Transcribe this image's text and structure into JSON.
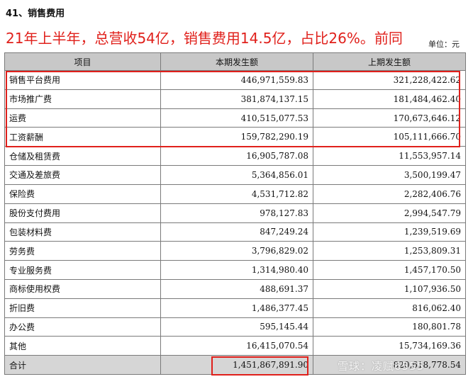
{
  "section_title": "41、销售费用",
  "headline": "21年上半年，总营收54亿，销售费用14.5亿，占比26%。前同",
  "unit_label": "单位：元",
  "columns": [
    "项目",
    "本期发生额",
    "上期发生额"
  ],
  "rows": [
    {
      "item": "销售平台费用",
      "current": "446,971,559.83",
      "previous": "321,228,422.62"
    },
    {
      "item": "市场推广费",
      "current": "381,874,137.15",
      "previous": "181,484,462.40"
    },
    {
      "item": "运费",
      "current": "410,515,077.53",
      "previous": "170,673,646.12"
    },
    {
      "item": "工资薪酬",
      "current": "159,782,290.19",
      "previous": "105,111,666.70"
    },
    {
      "item": "仓储及租赁费",
      "current": "16,905,787.08",
      "previous": "11,553,957.14"
    },
    {
      "item": "交通及差旅费",
      "current": "5,364,856.01",
      "previous": "3,500,199.47"
    },
    {
      "item": "保险费",
      "current": "4,531,712.82",
      "previous": "2,282,406.76"
    },
    {
      "item": "股份支付费用",
      "current": "978,127.83",
      "previous": "2,994,547.79"
    },
    {
      "item": "包装材料费",
      "current": "847,249.24",
      "previous": "1,239,519.69"
    },
    {
      "item": "劳务费",
      "current": "3,796,829.02",
      "previous": "1,253,809.31"
    },
    {
      "item": "专业服务费",
      "current": "1,314,980.40",
      "previous": "1,457,170.50"
    },
    {
      "item": "商标使用权费",
      "current": "488,691.37",
      "previous": "1,107,936.50"
    },
    {
      "item": "折旧费",
      "current": "1,486,377.45",
      "previous": "816,062.40"
    },
    {
      "item": "办公费",
      "current": "595,145.44",
      "previous": "180,801.78"
    },
    {
      "item": "其他",
      "current": "16,415,070.54",
      "previous": "15,734,169.36"
    }
  ],
  "total": {
    "item": "合计",
    "current": "1,451,867,891.90",
    "previous": "820,618,778.54"
  },
  "watermark": "雪球：凌赋6555",
  "highlight_color": "#e0201b"
}
